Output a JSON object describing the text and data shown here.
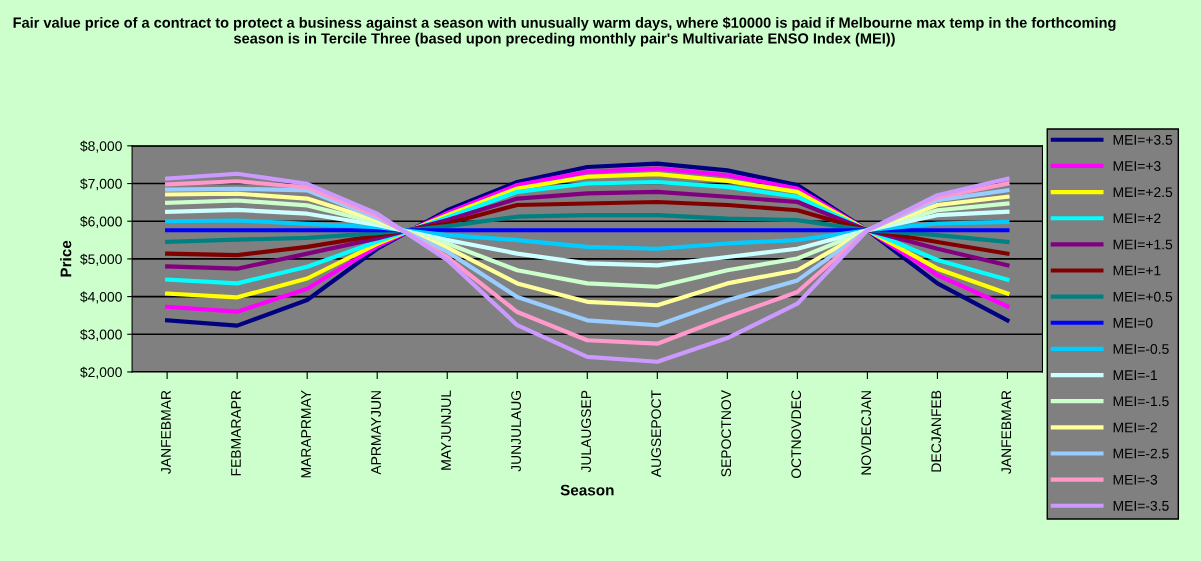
{
  "chart_data": {
    "type": "line",
    "title": "Fair value price of a contract to protect a business against a season with unusually warm days, where $10000 is paid if Melbourne max temp in the forthcoming season is in Tercile Three (based upon preceding monthly pair's Multivariate ENSO Index (MEI))",
    "xlabel": "Season",
    "ylabel": "Price",
    "categories": [
      "JANFEBMAR",
      "FEBMARAPR",
      "MARAPRMAY",
      "APRMAYJUN",
      "MAYJUNJUL",
      "JUNJULAUG",
      "JULAUGSEP",
      "AUGSEPOCT",
      "SEPOCTNOV",
      "OCTNOVDEC",
      "NOVDECJAN",
      "DECJANFEB",
      "JANFEBMAR"
    ],
    "ylim": [
      2000,
      8000
    ],
    "yticks": [
      {
        "value": 2000,
        "label": "$2,000"
      },
      {
        "value": 3000,
        "label": "$3,000"
      },
      {
        "value": 4000,
        "label": "$4,000"
      },
      {
        "value": 5000,
        "label": "$5,000"
      },
      {
        "value": 6000,
        "label": "$6,000"
      },
      {
        "value": 7000,
        "label": "$7,000"
      },
      {
        "value": 8000,
        "label": "$8,000"
      }
    ],
    "grid": "y",
    "legend": "right",
    "series": [
      {
        "name": "MEI=+3.5",
        "color": "#000080",
        "values": [
          3370,
          3230,
          3910,
          5270,
          6290,
          7040,
          7440,
          7530,
          7350,
          6960,
          5760,
          4350,
          3370
        ]
      },
      {
        "name": "MEI=+3",
        "color": "#ff00ff",
        "values": [
          3730,
          3600,
          4210,
          5330,
          6220,
          6960,
          7310,
          7400,
          7220,
          6870,
          5760,
          4570,
          3740
        ]
      },
      {
        "name": "MEI=+2.5",
        "color": "#ffff00",
        "values": [
          4080,
          3980,
          4480,
          5400,
          6160,
          6870,
          7180,
          7250,
          7070,
          6780,
          5760,
          4740,
          4080
        ]
      },
      {
        "name": "MEI=+2",
        "color": "#00ffff",
        "values": [
          4450,
          4350,
          4790,
          5460,
          6100,
          6780,
          7000,
          7040,
          6910,
          6650,
          5760,
          4970,
          4450
        ]
      },
      {
        "name": "MEI=+1.5",
        "color": "#800080",
        "values": [
          4800,
          4740,
          5140,
          5540,
          6030,
          6600,
          6740,
          6780,
          6650,
          6510,
          5760,
          5270,
          4830
        ]
      },
      {
        "name": "MEI=+1",
        "color": "#800000",
        "values": [
          5140,
          5100,
          5320,
          5620,
          5940,
          6430,
          6470,
          6510,
          6430,
          6290,
          5760,
          5450,
          5140
        ]
      },
      {
        "name": "MEI=+0.5",
        "color": "#008080",
        "values": [
          5450,
          5510,
          5560,
          5680,
          5870,
          6120,
          6160,
          6160,
          6070,
          6030,
          5760,
          5630,
          5450
        ]
      },
      {
        "name": "MEI=0",
        "color": "#0000ff",
        "values": [
          5760,
          5760,
          5760,
          5760,
          5760,
          5760,
          5760,
          5760,
          5760,
          5760,
          5760,
          5760,
          5760
        ]
      },
      {
        "name": "MEI=-0.5",
        "color": "#00ccff",
        "values": [
          6000,
          6020,
          5930,
          5840,
          5630,
          5500,
          5320,
          5270,
          5410,
          5500,
          5760,
          5940,
          5980
        ]
      },
      {
        "name": "MEI=-1",
        "color": "#ccffff",
        "values": [
          6250,
          6300,
          6200,
          5900,
          5500,
          5140,
          4880,
          4830,
          5050,
          5270,
          5760,
          6160,
          6250
        ]
      },
      {
        "name": "MEI=-1.5",
        "color": "#ccffcc",
        "values": [
          6490,
          6550,
          6420,
          5960,
          5410,
          4700,
          4350,
          4260,
          4700,
          5010,
          5760,
          6290,
          6470
        ]
      },
      {
        "name": "MEI=-2",
        "color": "#ffff99",
        "values": [
          6710,
          6730,
          6600,
          6020,
          5300,
          4350,
          3860,
          3770,
          4350,
          4700,
          5760,
          6430,
          6650
        ]
      },
      {
        "name": "MEI=-2.5",
        "color": "#99ccff",
        "values": [
          6840,
          6860,
          6820,
          6080,
          5190,
          3990,
          3370,
          3240,
          3900,
          4430,
          5760,
          6560,
          6820
        ]
      },
      {
        "name": "MEI=-3",
        "color": "#ff99cc",
        "values": [
          6980,
          7060,
          6900,
          6140,
          5050,
          3590,
          2840,
          2750,
          3460,
          4120,
          5760,
          6630,
          7000
        ]
      },
      {
        "name": "MEI=-3.5",
        "color": "#cc99ff",
        "values": [
          7130,
          7260,
          6990,
          6200,
          4970,
          3240,
          2400,
          2270,
          2900,
          3810,
          5760,
          6690,
          7130
        ]
      }
    ]
  }
}
